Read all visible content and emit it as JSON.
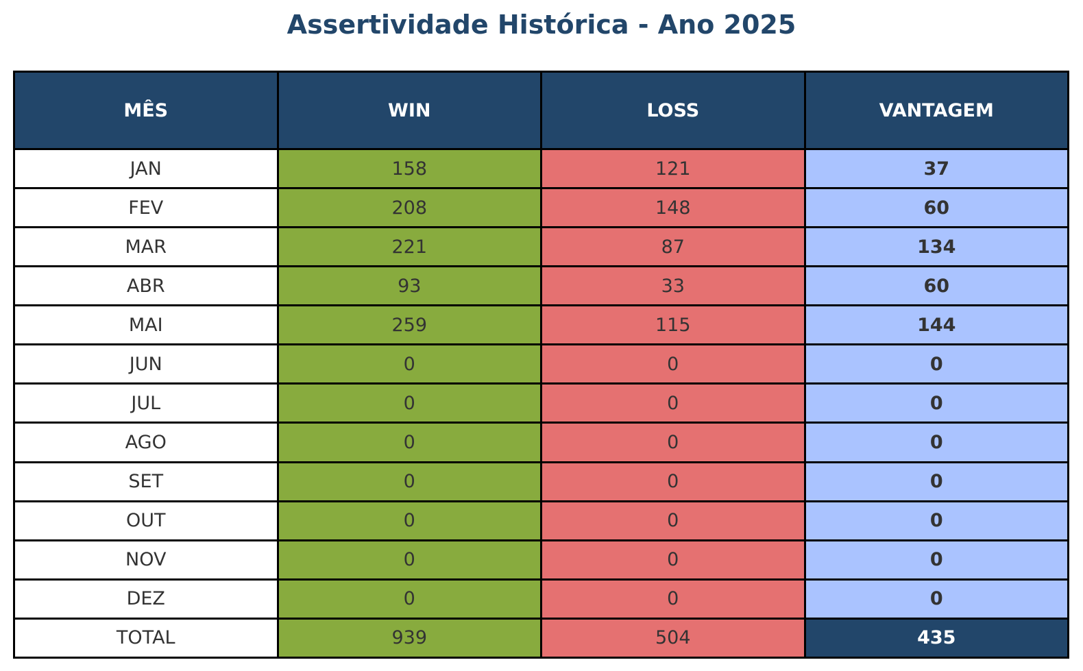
{
  "title": "Assertividade Histórica - Ano 2025",
  "colors": {
    "header_bg": "#22466a",
    "header_text": "#ffffff",
    "month_bg": "#ffffff",
    "win_bg": "#88ab3e",
    "loss_bg": "#e57171",
    "vantagem_bg": "#aac3ff",
    "total_vantagem_bg": "#22466a",
    "title": "#22466a"
  },
  "chart_data": {
    "type": "table",
    "title": "Assertividade Histórica - Ano 2025",
    "columns": [
      "MÊS",
      "WIN",
      "LOSS",
      "VANTAGEM"
    ],
    "rows": [
      {
        "mes": "JAN",
        "win": 158,
        "loss": 121,
        "vantagem": 37
      },
      {
        "mes": "FEV",
        "win": 208,
        "loss": 148,
        "vantagem": 60
      },
      {
        "mes": "MAR",
        "win": 221,
        "loss": 87,
        "vantagem": 134
      },
      {
        "mes": "ABR",
        "win": 93,
        "loss": 33,
        "vantagem": 60
      },
      {
        "mes": "MAI",
        "win": 259,
        "loss": 115,
        "vantagem": 144
      },
      {
        "mes": "JUN",
        "win": 0,
        "loss": 0,
        "vantagem": 0
      },
      {
        "mes": "JUL",
        "win": 0,
        "loss": 0,
        "vantagem": 0
      },
      {
        "mes": "AGO",
        "win": 0,
        "loss": 0,
        "vantagem": 0
      },
      {
        "mes": "SET",
        "win": 0,
        "loss": 0,
        "vantagem": 0
      },
      {
        "mes": "OUT",
        "win": 0,
        "loss": 0,
        "vantagem": 0
      },
      {
        "mes": "NOV",
        "win": 0,
        "loss": 0,
        "vantagem": 0
      },
      {
        "mes": "DEZ",
        "win": 0,
        "loss": 0,
        "vantagem": 0
      }
    ],
    "total": {
      "mes": "TOTAL",
      "win": 939,
      "loss": 504,
      "vantagem": 435
    }
  }
}
